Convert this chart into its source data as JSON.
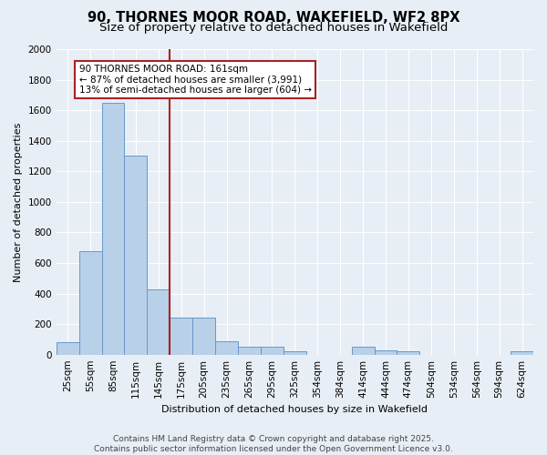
{
  "title_line1": "90, THORNES MOOR ROAD, WAKEFIELD, WF2 8PX",
  "title_line2": "Size of property relative to detached houses in Wakefield",
  "xlabel": "Distribution of detached houses by size in Wakefield",
  "ylabel": "Number of detached properties",
  "categories": [
    "25sqm",
    "55sqm",
    "85sqm",
    "115sqm",
    "145sqm",
    "175sqm",
    "205sqm",
    "235sqm",
    "265sqm",
    "295sqm",
    "325sqm",
    "354sqm",
    "384sqm",
    "414sqm",
    "444sqm",
    "474sqm",
    "504sqm",
    "534sqm",
    "564sqm",
    "594sqm",
    "624sqm"
  ],
  "values": [
    80,
    680,
    1650,
    1300,
    430,
    240,
    240,
    90,
    50,
    50,
    20,
    0,
    0,
    50,
    30,
    20,
    0,
    0,
    0,
    0,
    20
  ],
  "bar_color": "#b8d0e8",
  "bar_edge_color": "#6699cc",
  "vline_color": "#aa2222",
  "vline_x_index": 4.5,
  "annotation_text": "90 THORNES MOOR ROAD: 161sqm\n← 87% of detached houses are smaller (3,991)\n13% of semi-detached houses are larger (604) →",
  "annotation_box_color": "#aa2222",
  "ylim": [
    0,
    2000
  ],
  "yticks": [
    0,
    200,
    400,
    600,
    800,
    1000,
    1200,
    1400,
    1600,
    1800,
    2000
  ],
  "footer_line1": "Contains HM Land Registry data © Crown copyright and database right 2025.",
  "footer_line2": "Contains public sector information licensed under the Open Government Licence v3.0.",
  "bg_color": "#e8eef5",
  "plot_bg_color": "#e8eef5",
  "grid_color": "#ffffff",
  "title_fontsize": 10.5,
  "subtitle_fontsize": 9.5,
  "label_fontsize": 8,
  "tick_fontsize": 7.5,
  "footer_fontsize": 6.5,
  "annot_fontsize": 7.5
}
